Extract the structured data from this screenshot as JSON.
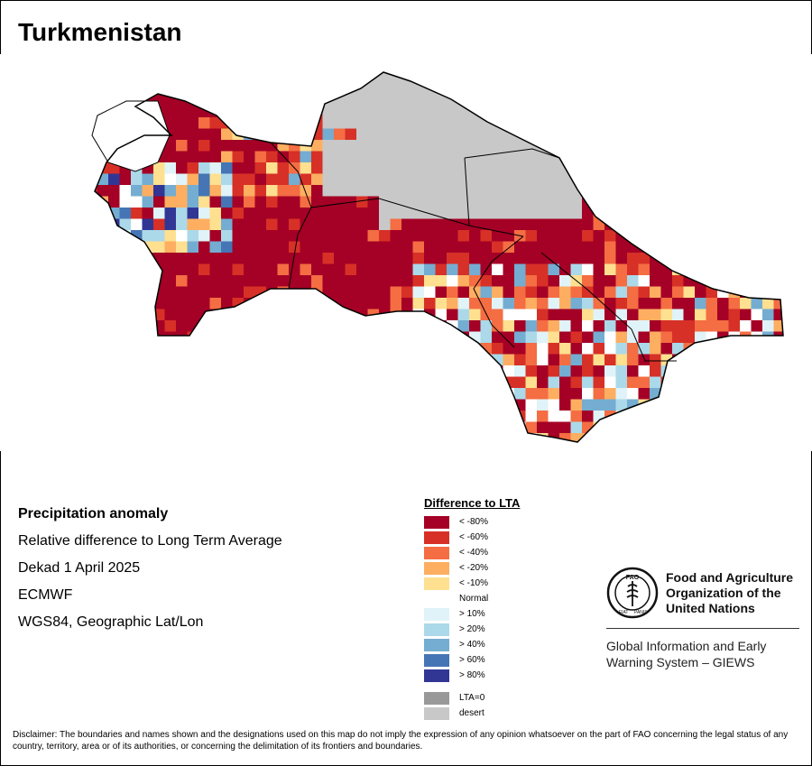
{
  "title": "Turkmenistan",
  "info": {
    "heading": "Precipitation anomaly",
    "subtitle": "Relative difference to Long Term Average",
    "period": "Dekad 1 April 2025",
    "source": "ECMWF",
    "projection": "WGS84, Geographic Lat/Lon"
  },
  "legend": {
    "title": "Difference to LTA",
    "classes": [
      {
        "label": "< -80%",
        "color": "#a50026"
      },
      {
        "label": "< -60%",
        "color": "#d73027"
      },
      {
        "label": "< -40%",
        "color": "#f46d43"
      },
      {
        "label": "< -20%",
        "color": "#fdae61"
      },
      {
        "label": "< -10%",
        "color": "#fee090"
      }
    ],
    "normal_label": "Normal",
    "wet_classes": [
      {
        "label": "> 10%",
        "color": "#e0f3f8"
      },
      {
        "label": "> 20%",
        "color": "#abd9e9"
      },
      {
        "label": "> 40%",
        "color": "#74add1"
      },
      {
        "label": "> 60%",
        "color": "#4575b4"
      },
      {
        "label": "> 80%",
        "color": "#313695"
      }
    ],
    "extra_classes": [
      {
        "label": "LTA=0",
        "color": "#999999"
      },
      {
        "label": "desert",
        "color": "#c8c8c8"
      }
    ]
  },
  "fao": {
    "name_line1": "Food and Agriculture",
    "name_line2": "Organization of the",
    "name_line3": "United Nations",
    "emblem_text": "FAO",
    "emblem_motto_left": "FIAT",
    "emblem_motto_right": "PANIS",
    "giews_line1": "Global Information and Early",
    "giews_line2": "Warning System – GIEWS"
  },
  "disclaimer": "Disclaimer: The boundaries and names shown and the designations used on this map do not imply the expression of any opinion whatsoever on the part of FAO concerning the legal status of any country, territory, area or of its authorities, or concerning the delimitation of its frontiers and boundaries.",
  "map_palette": {
    "dry80": "#a50026",
    "dry60": "#d73027",
    "dry40": "#f46d43",
    "dry20": "#fdae61",
    "dry10": "#fee090",
    "normal": "#ffffff",
    "wet10": "#e0f3f8",
    "wet20": "#abd9e9",
    "wet40": "#74add1",
    "wet60": "#4575b4",
    "wet80": "#313695",
    "desert": "#c8c8c8",
    "border": "#000000"
  }
}
